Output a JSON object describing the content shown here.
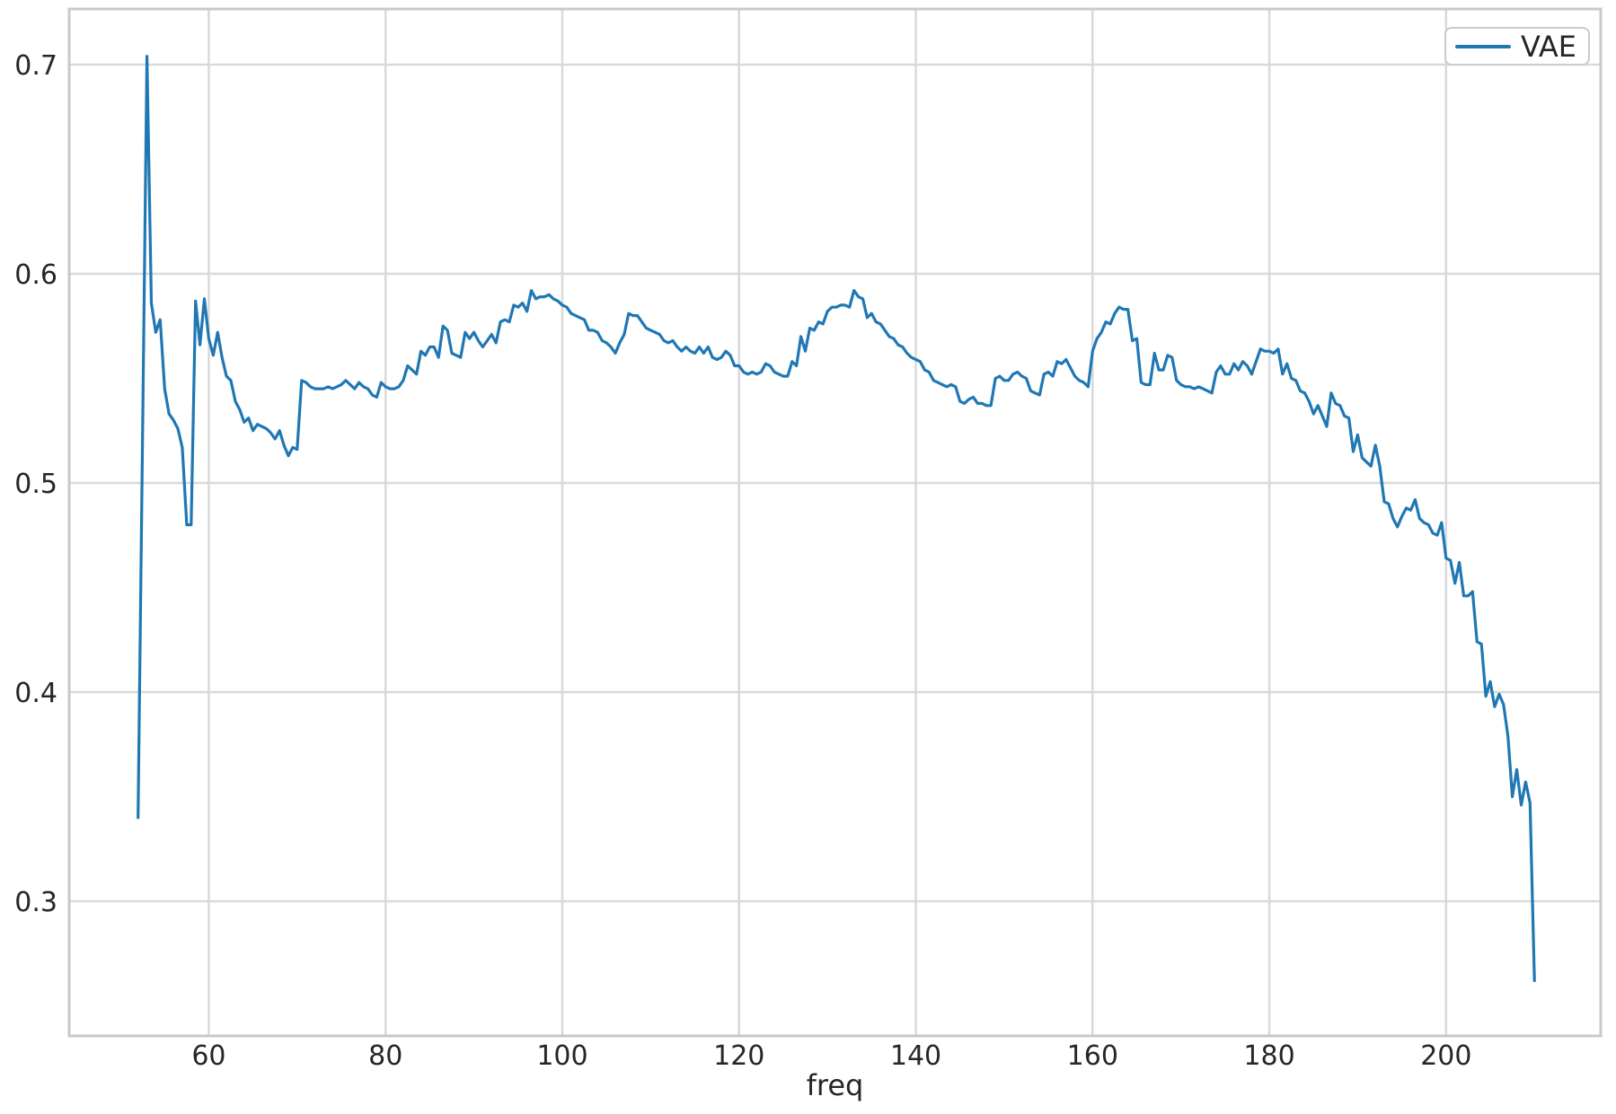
{
  "figure": {
    "background": "#ffffff"
  },
  "chart_data": {
    "type": "line",
    "title": "",
    "xlabel": "freq",
    "ylabel": "",
    "grid": true,
    "legend_position": "upper right",
    "xlim": [
      44.2,
      217.5
    ],
    "ylim": [
      0.2356,
      0.7266
    ],
    "x_ticks": [
      60,
      80,
      100,
      120,
      140,
      160,
      180,
      200
    ],
    "y_ticks": [
      0.3,
      0.4,
      0.5,
      0.6,
      0.7
    ],
    "colors": {
      "accent": "#1f77b4",
      "grid": "#d9d9d9",
      "spine": "#c9c9c9",
      "tick_text": "#262626"
    },
    "series": [
      {
        "name": "VAE",
        "color": "#1f77b4",
        "x_start": 52,
        "x_step": 0.5,
        "values": [
          0.34,
          0.522,
          0.704,
          0.586,
          0.572,
          0.578,
          0.545,
          0.533,
          0.53,
          0.526,
          0.517,
          0.48,
          0.48,
          0.587,
          0.566,
          0.588,
          0.569,
          0.561,
          0.572,
          0.56,
          0.551,
          0.549,
          0.539,
          0.535,
          0.529,
          0.531,
          0.525,
          0.528,
          0.527,
          0.526,
          0.524,
          0.521,
          0.525,
          0.518,
          0.513,
          0.517,
          0.516,
          0.549,
          0.548,
          0.546,
          0.545,
          0.545,
          0.545,
          0.546,
          0.545,
          0.546,
          0.547,
          0.549,
          0.547,
          0.545,
          0.548,
          0.546,
          0.545,
          0.542,
          0.541,
          0.548,
          0.546,
          0.545,
          0.545,
          0.546,
          0.549,
          0.556,
          0.554,
          0.552,
          0.563,
          0.561,
          0.565,
          0.565,
          0.56,
          0.575,
          0.573,
          0.562,
          0.561,
          0.56,
          0.572,
          0.569,
          0.572,
          0.568,
          0.565,
          0.568,
          0.571,
          0.567,
          0.577,
          0.578,
          0.577,
          0.585,
          0.584,
          0.586,
          0.582,
          0.592,
          0.588,
          0.589,
          0.589,
          0.59,
          0.588,
          0.587,
          0.585,
          0.584,
          0.581,
          0.58,
          0.579,
          0.578,
          0.573,
          0.573,
          0.572,
          0.568,
          0.567,
          0.565,
          0.562,
          0.567,
          0.571,
          0.581,
          0.58,
          0.58,
          0.577,
          0.574,
          0.573,
          0.572,
          0.571,
          0.568,
          0.567,
          0.568,
          0.565,
          0.563,
          0.565,
          0.563,
          0.562,
          0.565,
          0.562,
          0.565,
          0.56,
          0.559,
          0.56,
          0.563,
          0.561,
          0.556,
          0.556,
          0.553,
          0.552,
          0.553,
          0.552,
          0.553,
          0.557,
          0.556,
          0.553,
          0.552,
          0.551,
          0.551,
          0.558,
          0.556,
          0.57,
          0.563,
          0.574,
          0.573,
          0.577,
          0.576,
          0.582,
          0.584,
          0.584,
          0.585,
          0.585,
          0.584,
          0.592,
          0.589,
          0.588,
          0.579,
          0.581,
          0.577,
          0.576,
          0.573,
          0.57,
          0.569,
          0.566,
          0.565,
          0.562,
          0.56,
          0.559,
          0.558,
          0.554,
          0.553,
          0.549,
          0.548,
          0.547,
          0.546,
          0.547,
          0.546,
          0.539,
          0.538,
          0.54,
          0.541,
          0.538,
          0.538,
          0.537,
          0.537,
          0.55,
          0.551,
          0.549,
          0.549,
          0.552,
          0.553,
          0.551,
          0.55,
          0.544,
          0.543,
          0.542,
          0.552,
          0.553,
          0.551,
          0.558,
          0.557,
          0.559,
          0.555,
          0.551,
          0.549,
          0.548,
          0.546,
          0.563,
          0.569,
          0.572,
          0.577,
          0.576,
          0.581,
          0.584,
          0.583,
          0.583,
          0.568,
          0.569,
          0.548,
          0.547,
          0.547,
          0.562,
          0.554,
          0.554,
          0.561,
          0.56,
          0.549,
          0.547,
          0.546,
          0.546,
          0.545,
          0.546,
          0.545,
          0.544,
          0.543,
          0.553,
          0.556,
          0.552,
          0.552,
          0.557,
          0.554,
          0.558,
          0.556,
          0.552,
          0.558,
          0.564,
          0.563,
          0.563,
          0.562,
          0.564,
          0.552,
          0.557,
          0.55,
          0.549,
          0.544,
          0.543,
          0.539,
          0.533,
          0.537,
          0.532,
          0.527,
          0.543,
          0.538,
          0.537,
          0.532,
          0.531,
          0.515,
          0.523,
          0.512,
          0.51,
          0.508,
          0.518,
          0.508,
          0.491,
          0.49,
          0.483,
          0.479,
          0.484,
          0.488,
          0.487,
          0.492,
          0.483,
          0.481,
          0.48,
          0.476,
          0.475,
          0.481,
          0.464,
          0.463,
          0.452,
          0.462,
          0.446,
          0.446,
          0.448,
          0.424,
          0.423,
          0.398,
          0.405,
          0.393,
          0.399,
          0.394,
          0.379,
          0.35,
          0.363,
          0.346,
          0.357,
          0.347,
          0.262
        ]
      }
    ]
  }
}
